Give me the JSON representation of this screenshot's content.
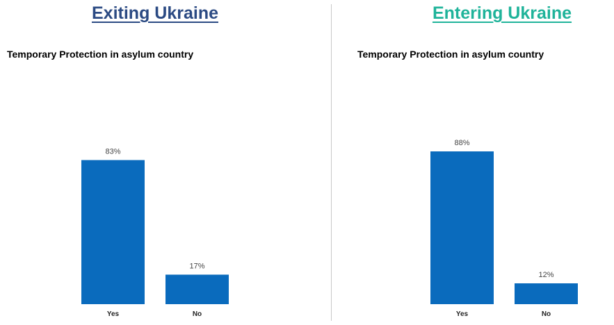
{
  "colors": {
    "bar": "#0a6bbd",
    "left_title": "#2b4a83",
    "right_title": "#1fb39a"
  },
  "chart_data": [
    {
      "type": "bar",
      "heading": "Exiting Ukraine",
      "title": "Temporary Protection in asylum country",
      "categories": [
        "Yes",
        "No"
      ],
      "values": [
        83,
        17
      ],
      "value_labels": [
        "83%",
        "17%"
      ],
      "ylim": [
        0,
        100
      ],
      "grid": false
    },
    {
      "type": "bar",
      "heading": "Entering Ukraine",
      "title": "Temporary Protection in asylum country",
      "categories": [
        "Yes",
        "No"
      ],
      "values": [
        88,
        12
      ],
      "value_labels": [
        "88%",
        "12%"
      ],
      "ylim": [
        0,
        100
      ],
      "grid": false
    }
  ]
}
